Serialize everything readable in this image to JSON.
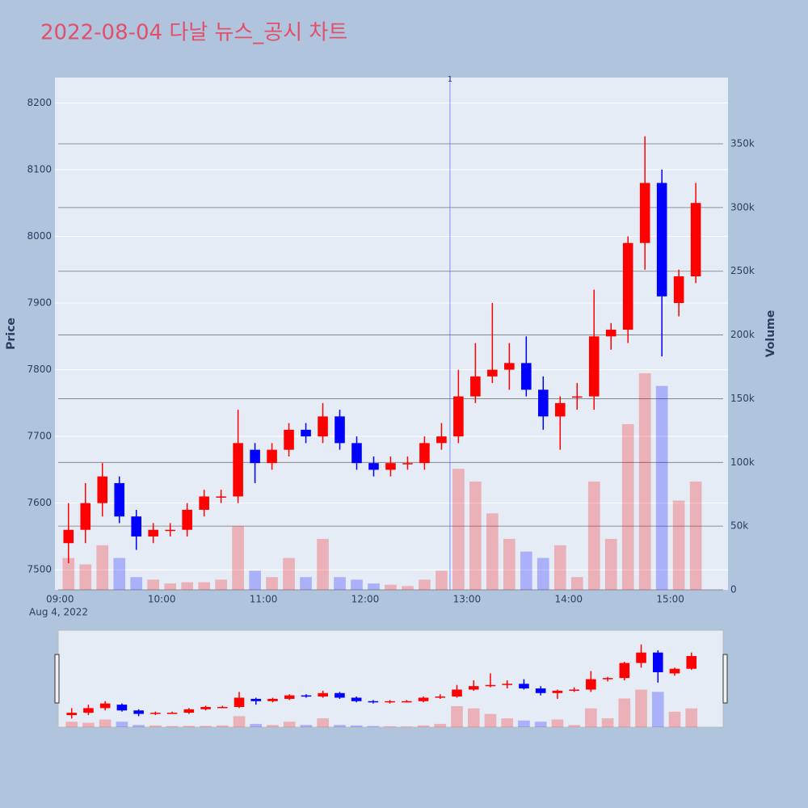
{
  "chart_data": {
    "type": "candlestick",
    "title": "2022-08-04 다날 뉴스_공시 차트",
    "x": [
      "09:00",
      "09:10",
      "09:20",
      "09:30",
      "09:40",
      "09:50",
      "10:00",
      "10:10",
      "10:20",
      "10:30",
      "10:40",
      "10:50",
      "11:00",
      "11:10",
      "11:20",
      "11:30",
      "11:40",
      "11:50",
      "12:00",
      "12:10",
      "12:20",
      "12:30",
      "12:40",
      "12:50",
      "13:00",
      "13:10",
      "13:20",
      "13:30",
      "13:40",
      "13:50",
      "14:00",
      "14:10",
      "14:20",
      "14:30",
      "14:40",
      "14:50",
      "15:00",
      "15:10"
    ],
    "open": [
      7540,
      7560,
      7600,
      7630,
      7580,
      7550,
      7560,
      7560,
      7590,
      7610,
      7610,
      7680,
      7660,
      7680,
      7710,
      7700,
      7730,
      7690,
      7660,
      7650,
      7660,
      7660,
      7690,
      7700,
      7760,
      7790,
      7800,
      7810,
      7770,
      7730,
      7760,
      7760,
      7850,
      7860,
      7990,
      8080,
      7900,
      7940
    ],
    "high": [
      7600,
      7630,
      7660,
      7640,
      7590,
      7570,
      7570,
      7600,
      7620,
      7620,
      7740,
      7690,
      7690,
      7720,
      7720,
      7750,
      7740,
      7700,
      7670,
      7670,
      7670,
      7700,
      7720,
      7800,
      7840,
      7900,
      7840,
      7850,
      7790,
      7760,
      7780,
      7920,
      7870,
      8000,
      8150,
      8100,
      7950,
      8080
    ],
    "low": [
      7510,
      7540,
      7580,
      7570,
      7530,
      7540,
      7550,
      7550,
      7580,
      7600,
      7600,
      7630,
      7650,
      7670,
      7690,
      7690,
      7680,
      7650,
      7640,
      7640,
      7650,
      7650,
      7680,
      7690,
      7750,
      7780,
      7770,
      7760,
      7710,
      7680,
      7740,
      7740,
      7830,
      7840,
      7950,
      7820,
      7880,
      7930
    ],
    "close": [
      7560,
      7600,
      7640,
      7580,
      7550,
      7560,
      7560,
      7590,
      7610,
      7610,
      7690,
      7660,
      7680,
      7710,
      7700,
      7730,
      7690,
      7660,
      7650,
      7660,
      7660,
      7690,
      7700,
      7760,
      7790,
      7800,
      7810,
      7770,
      7730,
      7750,
      7760,
      7850,
      7860,
      7990,
      8080,
      7910,
      7940,
      8050
    ],
    "volume": [
      25000,
      20000,
      35000,
      25000,
      10000,
      8000,
      5000,
      6000,
      6000,
      8000,
      50000,
      15000,
      10000,
      25000,
      10000,
      40000,
      10000,
      8000,
      5000,
      4000,
      3000,
      8000,
      15000,
      95000,
      85000,
      60000,
      40000,
      30000,
      25000,
      35000,
      10000,
      85000,
      40000,
      130000,
      170000,
      160000,
      70000,
      85000
    ],
    "xlim": [
      "08:57",
      "15:34"
    ],
    "xticks": [
      "09:00",
      "10:00",
      "11:00",
      "12:00",
      "13:00",
      "14:00",
      "15:00"
    ],
    "x_date_label": "Aug 4, 2022",
    "ylim": [
      7470,
      8238
    ],
    "yticks": [
      7500,
      7600,
      7700,
      7800,
      7900,
      8000,
      8100,
      8200
    ],
    "y_label": "Price",
    "y2lim": [
      0,
      402000
    ],
    "y2ticks": [
      0,
      {
        "value": 50000,
        "label": "50k"
      },
      {
        "value": 100000,
        "label": "100k"
      },
      {
        "value": 150000,
        "label": "150k"
      },
      {
        "value": 200000,
        "label": "200k"
      },
      {
        "value": 250000,
        "label": "250k"
      },
      {
        "value": 300000,
        "label": "300k"
      },
      {
        "value": 350000,
        "label": "350k"
      }
    ],
    "y2_label": "Volume",
    "annotations": [
      {
        "x": "12:50",
        "text": "1"
      }
    ],
    "increasing_color": "#ff0000",
    "decreasing_color": "#0000ff",
    "grid": true,
    "rangeslider": true
  }
}
